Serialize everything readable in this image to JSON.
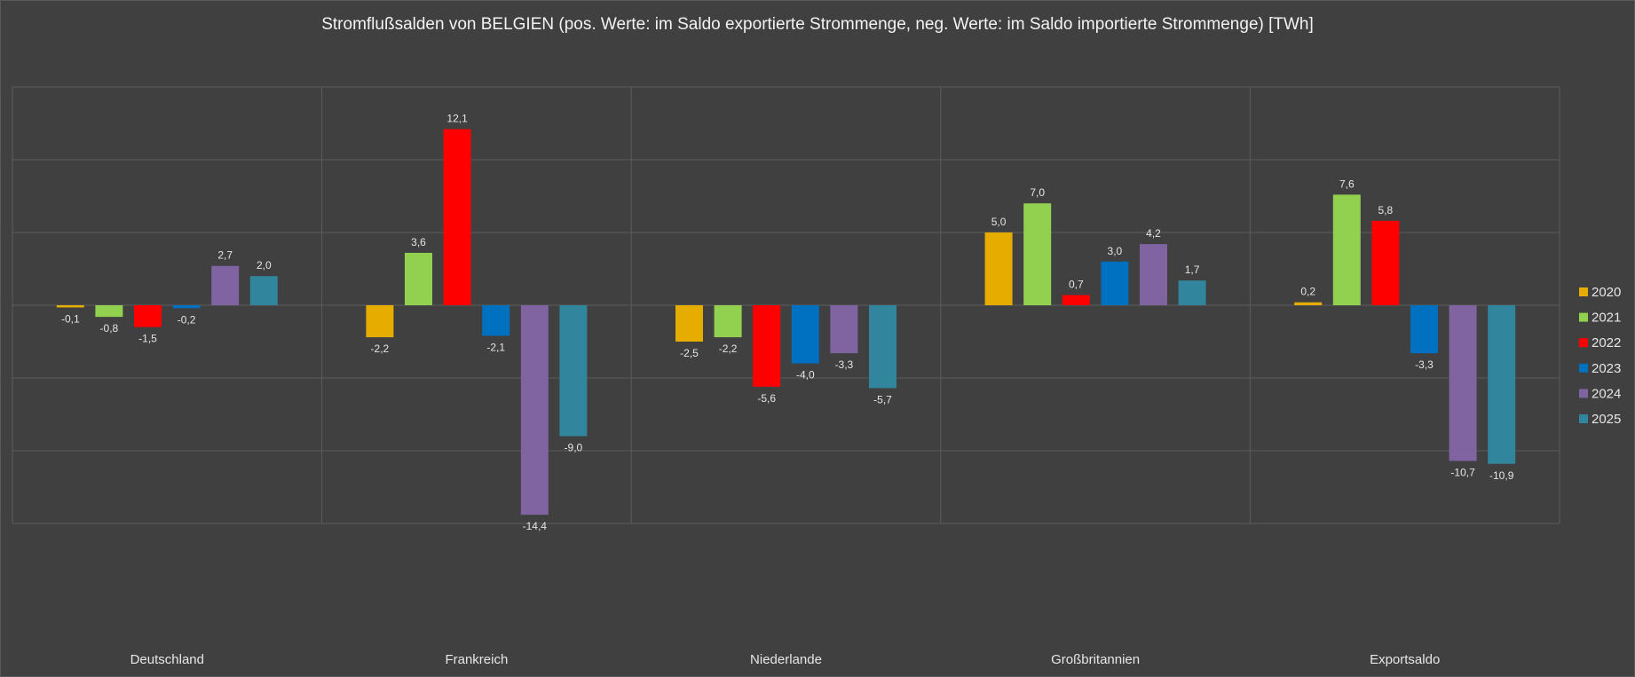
{
  "chart_data": {
    "type": "bar",
    "title": "Stromflußsalden von BELGIEN (pos. Werte: im Saldo exportierte Strommenge, neg. Werte: im Saldo importierte Strommenge) [TWh]",
    "xlabel": "",
    "ylabel": "",
    "ylim": [
      -15,
      15
    ],
    "grid": true,
    "legend_position": "right",
    "categories": [
      "Deutschland",
      "Frankreich",
      "Niederlande",
      "Großbritannien",
      "Exportsaldo"
    ],
    "series": [
      {
        "name": "2020",
        "color": "#e6ac00",
        "values": [
          -0.1,
          -2.2,
          -2.5,
          5.0,
          0.2
        ],
        "labels": [
          "-0,1",
          "-2,2",
          "-2,5",
          "5,0",
          "0,2"
        ]
      },
      {
        "name": "2021",
        "color": "#92d050",
        "values": [
          -0.8,
          3.6,
          -2.2,
          7.0,
          7.6
        ],
        "labels": [
          "-0,8",
          "3,6",
          "-2,2",
          "7,0",
          "7,6"
        ]
      },
      {
        "name": "2022",
        "color": "#ff0000",
        "values": [
          -1.5,
          12.1,
          -5.6,
          0.7,
          5.8
        ],
        "labels": [
          "-1,5",
          "12,1",
          "-5,6",
          "0,7",
          "5,8"
        ]
      },
      {
        "name": "2023",
        "color": "#0070c0",
        "values": [
          -0.2,
          -2.1,
          -4.0,
          3.0,
          -3.3
        ],
        "labels": [
          "-0,2",
          "-2,1",
          "-4,0",
          "3,0",
          "-3,3"
        ]
      },
      {
        "name": "2024",
        "color": "#8064a2",
        "values": [
          2.7,
          -14.4,
          -3.3,
          4.2,
          -10.7
        ],
        "labels": [
          "2,7",
          "-14,4",
          "-3,3",
          "4,2",
          "-10,7"
        ]
      },
      {
        "name": "2025",
        "color": "#31859c",
        "values": [
          2.0,
          -9.0,
          -5.7,
          1.7,
          -10.9
        ],
        "labels": [
          "2,0",
          "-9,0",
          "-5,7",
          "1,7",
          "-10,9"
        ]
      }
    ]
  }
}
